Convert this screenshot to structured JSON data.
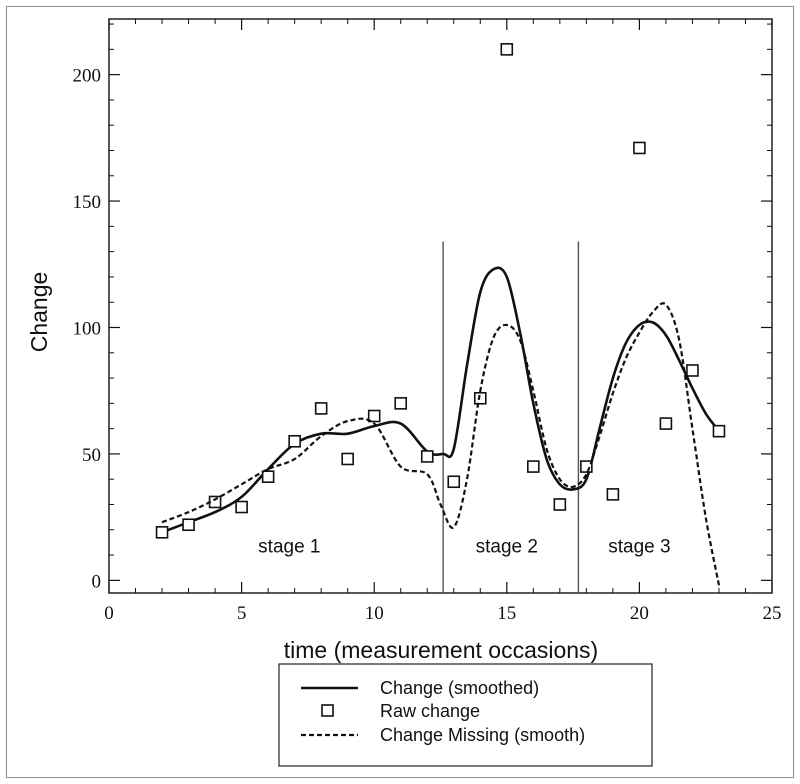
{
  "chart_data": {
    "type": "scatter",
    "xlabel": "time (measurement occasions)",
    "ylabel": "Change",
    "xlim": [
      0,
      25
    ],
    "ylim": [
      -5,
      222
    ],
    "x_ticks": [
      0,
      5,
      10,
      15,
      20,
      25
    ],
    "y_ticks": [
      0,
      50,
      100,
      150,
      200
    ],
    "grid": false,
    "legend_position": "bottom",
    "stage_boundaries": [
      12.6,
      17.7
    ],
    "stage_labels": [
      {
        "text": "stage 1",
        "x": 6.8,
        "y": 11
      },
      {
        "text": "stage 2",
        "x": 15.0,
        "y": 11
      },
      {
        "text": "stage 3",
        "x": 20.0,
        "y": 11
      }
    ],
    "series": [
      {
        "name": "Change (smoothed)",
        "style": "solid",
        "points": [
          [
            2,
            19
          ],
          [
            3,
            23
          ],
          [
            4,
            27
          ],
          [
            5,
            33
          ],
          [
            6,
            44
          ],
          [
            7,
            54
          ],
          [
            8,
            58
          ],
          [
            9,
            58
          ],
          [
            10,
            61
          ],
          [
            11,
            62
          ],
          [
            12,
            51
          ],
          [
            12.6,
            50
          ],
          [
            13,
            52
          ],
          [
            13.5,
            85
          ],
          [
            14,
            114
          ],
          [
            14.5,
            123
          ],
          [
            15,
            120
          ],
          [
            15.5,
            98
          ],
          [
            16,
            70
          ],
          [
            16.5,
            48
          ],
          [
            17,
            38
          ],
          [
            17.5,
            36
          ],
          [
            18,
            40
          ],
          [
            18.5,
            60
          ],
          [
            19,
            80
          ],
          [
            19.5,
            94
          ],
          [
            20,
            101
          ],
          [
            20.5,
            102
          ],
          [
            21,
            97
          ],
          [
            21.5,
            87
          ],
          [
            22,
            76
          ],
          [
            22.5,
            66
          ],
          [
            23,
            59
          ]
        ]
      },
      {
        "name": "Raw change",
        "style": "markers",
        "points": [
          [
            2,
            19
          ],
          [
            3,
            22
          ],
          [
            4,
            31
          ],
          [
            5,
            29
          ],
          [
            6,
            41
          ],
          [
            7,
            55
          ],
          [
            8,
            68
          ],
          [
            9,
            48
          ],
          [
            10,
            65
          ],
          [
            11,
            70
          ],
          [
            12,
            49
          ],
          [
            13,
            39
          ],
          [
            14,
            72
          ],
          [
            15,
            210
          ],
          [
            16,
            45
          ],
          [
            17,
            30
          ],
          [
            18,
            45
          ],
          [
            19,
            34
          ],
          [
            20,
            171
          ],
          [
            21,
            62
          ],
          [
            22,
            83
          ],
          [
            23,
            59
          ]
        ]
      },
      {
        "name": "Change Missing (smooth)",
        "style": "dashed",
        "points": [
          [
            2,
            23
          ],
          [
            3,
            27
          ],
          [
            4,
            32
          ],
          [
            5,
            38
          ],
          [
            6,
            44
          ],
          [
            7,
            48
          ],
          [
            8,
            57
          ],
          [
            9,
            63
          ],
          [
            10,
            62
          ],
          [
            11,
            45
          ],
          [
            12,
            42
          ],
          [
            12.5,
            30
          ],
          [
            13,
            21
          ],
          [
            13.5,
            40
          ],
          [
            14,
            75
          ],
          [
            14.5,
            96
          ],
          [
            15,
            101
          ],
          [
            15.5,
            95
          ],
          [
            16,
            75
          ],
          [
            16.5,
            52
          ],
          [
            17,
            40
          ],
          [
            17.5,
            37
          ],
          [
            18,
            42
          ],
          [
            18.5,
            57
          ],
          [
            19,
            74
          ],
          [
            19.5,
            88
          ],
          [
            20,
            98
          ],
          [
            20.5,
            106
          ],
          [
            21,
            109
          ],
          [
            21.5,
            95
          ],
          [
            22,
            60
          ],
          [
            22.5,
            25
          ],
          [
            23,
            -2
          ]
        ]
      }
    ]
  }
}
